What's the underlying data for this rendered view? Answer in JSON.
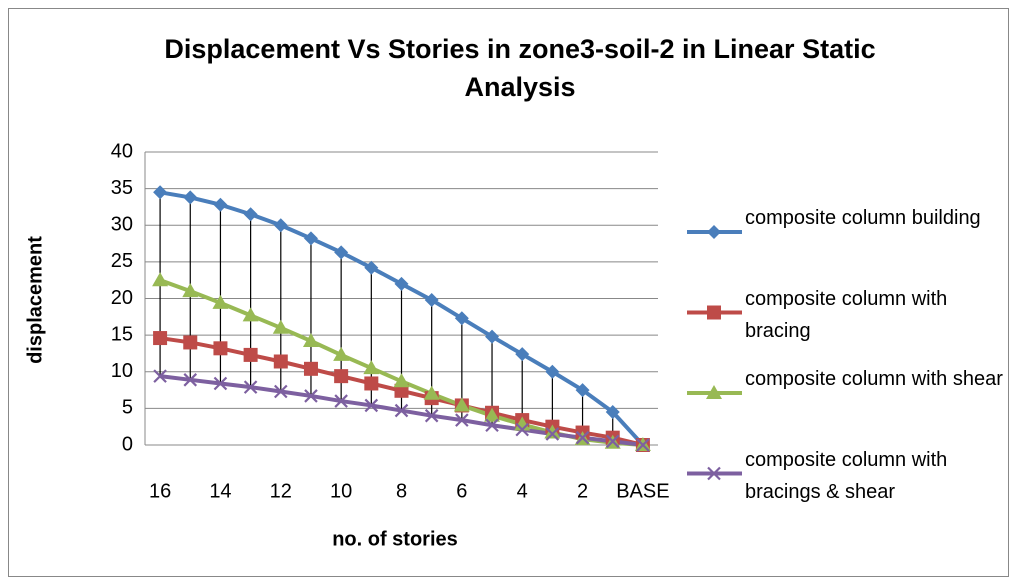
{
  "chart_data": {
    "type": "line",
    "title": "Displacement Vs Stories in zone3-soil-2 in Linear Static Analysis",
    "x_label": "no. of stories",
    "y_label": "displacement",
    "categories": [
      "16",
      null,
      "14",
      null,
      "12",
      null,
      "10",
      null,
      "8",
      null,
      "6",
      null,
      "4",
      null,
      "2",
      null,
      "BASE"
    ],
    "series": [
      {
        "name": "composite column building",
        "color": "#4a7ebb",
        "marker": "diamond",
        "values": [
          34.5,
          33.8,
          32.8,
          31.5,
          30,
          28.2,
          26.3,
          24.2,
          22,
          19.8,
          17.3,
          14.8,
          12.4,
          10,
          7.5,
          4.5,
          0
        ]
      },
      {
        "name": "composite column with bracing",
        "color": "#be4b48",
        "marker": "square",
        "values": [
          14.6,
          14,
          13.2,
          12.3,
          11.4,
          10.4,
          9.4,
          8.4,
          7.4,
          6.4,
          5.4,
          4.4,
          3.4,
          2.5,
          1.7,
          1,
          0
        ]
      },
      {
        "name": "composite column with shear",
        "color": "#98b954",
        "marker": "triangle",
        "values": [
          22.5,
          21,
          19.4,
          17.7,
          16,
          14.2,
          12.3,
          10.5,
          8.7,
          7,
          5.4,
          4,
          2.8,
          1.7,
          0.8,
          0.3,
          0
        ]
      },
      {
        "name": "composite column with bracings & shear",
        "color": "#7d60a0",
        "marker": "x",
        "values": [
          9.4,
          8.9,
          8.4,
          7.9,
          7.3,
          6.7,
          6,
          5.4,
          4.7,
          4,
          3.4,
          2.7,
          2.1,
          1.5,
          1,
          0.5,
          0
        ]
      }
    ],
    "ylim": [
      0,
      40
    ],
    "yticks": [
      0,
      5,
      10,
      15,
      20,
      25,
      30,
      35,
      40
    ],
    "grid": true,
    "hi_low_lines": true,
    "legend": "right"
  }
}
